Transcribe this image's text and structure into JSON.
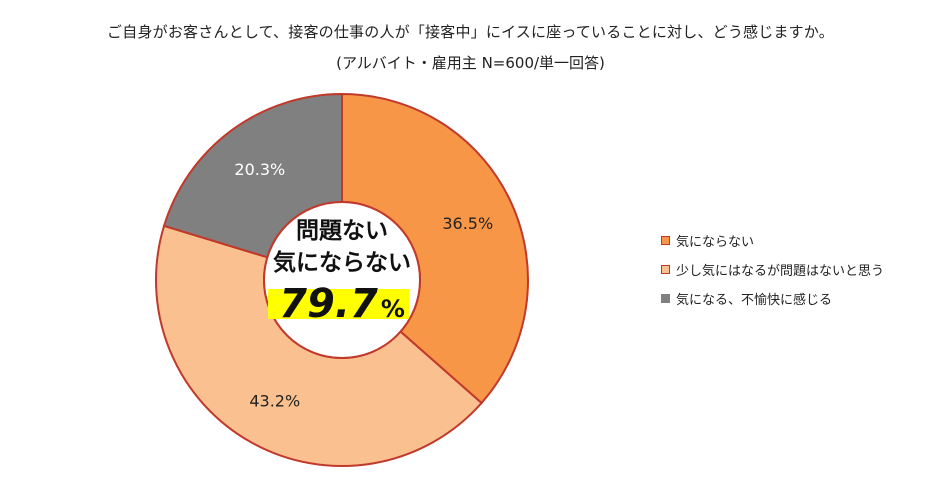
{
  "chart_data": {
    "type": "pie",
    "title": "ご自身がお客さんとして、接客の仕事の人が「接客中」にイスに座っていることに対し、どう感じますか。",
    "subtitle": "(アルバイト・雇用主 N=600/単一回答)",
    "categories": [
      "気にならない",
      "少し気にはなるが問題はないと思う",
      "気になる、不愉快に感じる"
    ],
    "values": [
      36.5,
      43.2,
      20.3
    ],
    "value_labels": [
      "36.5%",
      "43.2%",
      "20.3%"
    ],
    "colors": [
      "#f79646",
      "#fac090",
      "#808080"
    ],
    "center_text": {
      "line1": "問題ない",
      "line2": "気にならない",
      "value": "79.7",
      "unit": "%"
    },
    "legend_position": "right"
  }
}
